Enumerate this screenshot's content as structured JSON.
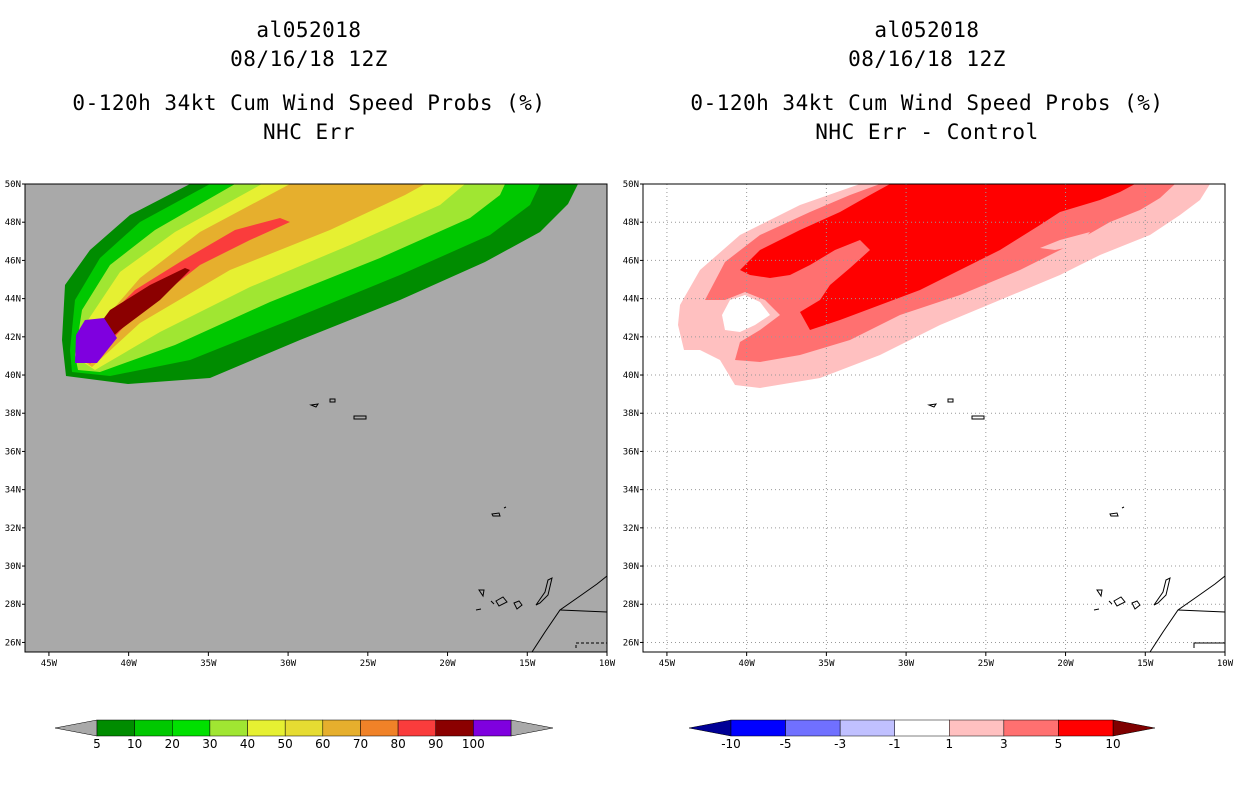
{
  "chart_data": [
    {
      "type": "heatmap",
      "panel": "left",
      "title": [
        "al052018",
        "08/16/18 12Z",
        "0-120h 34kt Cum Wind Speed Probs (%)",
        "NHC Err"
      ],
      "x_ticks": [
        "45W",
        "40W",
        "35W",
        "30W",
        "25W",
        "20W",
        "15W",
        "10W"
      ],
      "y_ticks": [
        "50N",
        "48N",
        "46N",
        "44N",
        "42N",
        "40N",
        "38N",
        "36N",
        "34N",
        "32N",
        "30N",
        "28N",
        "26N"
      ],
      "xlim": [
        -46.5,
        -10
      ],
      "ylim": [
        25.5,
        50
      ],
      "background": "#a9a9a9",
      "colorbar": {
        "labels": [
          "5",
          "10",
          "20",
          "30",
          "40",
          "50",
          "60",
          "70",
          "80",
          "90",
          "100"
        ],
        "colors": [
          "#008c00",
          "#00c800",
          "#00e000",
          "#a0e632",
          "#e6f032",
          "#e6dc32",
          "#e6af2d",
          "#f08228",
          "#fa3c3c",
          "#8b0000",
          "#7f00df"
        ],
        "low_extend_color": "#a9a9a9",
        "high_extend_color": "#a9a9a9"
      }
    },
    {
      "type": "heatmap",
      "panel": "right",
      "title": [
        "al052018",
        "08/16/18 12Z",
        "0-120h 34kt Cum Wind Speed Probs (%)",
        "NHC Err - Control"
      ],
      "x_ticks": [
        "45W",
        "40W",
        "35W",
        "30W",
        "25W",
        "20W",
        "15W",
        "10W"
      ],
      "y_ticks": [
        "50N",
        "48N",
        "46N",
        "44N",
        "42N",
        "40N",
        "38N",
        "36N",
        "34N",
        "32N",
        "30N",
        "28N",
        "26N"
      ],
      "xlim": [
        -46.5,
        -10
      ],
      "ylim": [
        25.5,
        50
      ],
      "background": "#ffffff",
      "grid": true,
      "colorbar": {
        "labels": [
          "-10",
          "-5",
          "-3",
          "-1",
          "1",
          "3",
          "5",
          "10"
        ],
        "colors": [
          "#0000ff",
          "#7070ff",
          "#c0c0ff",
          "#ffffff",
          "#ffc0c0",
          "#ff7070",
          "#ff0000"
        ],
        "low_extend_color": "#000096",
        "high_extend_color": "#7f0000"
      }
    }
  ]
}
